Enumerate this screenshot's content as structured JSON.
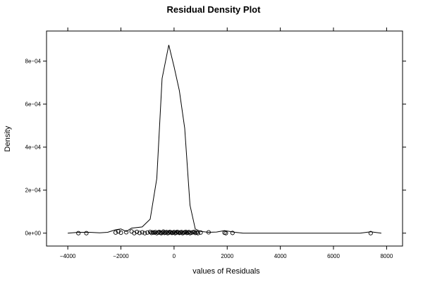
{
  "chart_data": {
    "type": "line",
    "title": "Residual Density Plot",
    "xlabel": "values of Residuals",
    "ylabel": "Density",
    "xlim": [
      -4800,
      8600
    ],
    "ylim": [
      -6e-05,
      0.00094
    ],
    "x_ticks": [
      -4000,
      -2000,
      0,
      2000,
      4000,
      6000,
      8000
    ],
    "x_tick_labels": [
      "−4000",
      "−2000",
      "0",
      "2000",
      "4000",
      "6000",
      "8000"
    ],
    "y_ticks": [
      0,
      0.0002,
      0.0004,
      0.0006,
      0.0008
    ],
    "y_tick_labels": [
      "0e+00",
      "2e−04",
      "4e−04",
      "6e−04",
      "8e−04"
    ],
    "grid": false,
    "legend": "none",
    "series": [
      {
        "type": "line",
        "color": "#000000",
        "x": [
          -4000,
          -3600,
          -3200,
          -2800,
          -2500,
          -2200,
          -2000,
          -1800,
          -1600,
          -1200,
          -900,
          -650,
          -450,
          -200,
          0,
          200,
          400,
          600,
          800,
          1000,
          1300,
          1600,
          1900,
          2300,
          2600,
          3000,
          4000,
          5000,
          6000,
          7000,
          7400,
          7800
        ],
        "y": [
          0,
          3.9e-06,
          3.9e-06,
          1.3e-06,
          3.9e-06,
          1.56e-05,
          1.95e-05,
          7.8e-06,
          2.34e-05,
          2.87e-05,
          6.5e-05,
          0.000254,
          0.000719,
          0.000875,
          0.000774,
          0.000663,
          0.000488,
          0.00013,
          1.95e-05,
          7.8e-06,
          3.9e-06,
          5.2e-06,
          1.17e-05,
          3.9e-06,
          0,
          0,
          0,
          0,
          0,
          0,
          6.5e-06,
          0
        ]
      },
      {
        "type": "scatter",
        "marker": "open-circle",
        "color": "#000000",
        "x": [
          -3600,
          -3300,
          -2200,
          -2100,
          -2000,
          -1800,
          -1600,
          -1500,
          -1400,
          -1300,
          -1200,
          -1100,
          -1000,
          -900,
          -850,
          -800,
          -750,
          -700,
          -650,
          -600,
          -560,
          -520,
          -480,
          -440,
          -400,
          -360,
          -320,
          -280,
          -240,
          -200,
          -160,
          -120,
          -80,
          -40,
          0,
          40,
          80,
          120,
          160,
          200,
          240,
          280,
          320,
          360,
          400,
          440,
          480,
          520,
          560,
          600,
          650,
          700,
          750,
          800,
          850,
          900,
          1000,
          1300,
          1900,
          1950,
          2200,
          7400
        ],
        "y": [
          0,
          0,
          3e-06,
          8e-06,
          2e-06,
          4e-06,
          8e-06,
          0,
          6e-06,
          1e-06,
          4e-06,
          0,
          3e-06,
          6e-06,
          1e-06,
          4e-06,
          2e-06,
          5e-06,
          0,
          3e-06,
          6e-06,
          2e-06,
          0,
          4e-06,
          7e-06,
          1e-06,
          3e-06,
          5e-06,
          0,
          2e-06,
          6e-06,
          4e-06,
          1e-06,
          3e-06,
          5e-06,
          0,
          2e-06,
          6e-06,
          4e-06,
          1e-06,
          3e-06,
          5e-06,
          0,
          2e-06,
          4e-06,
          6e-06,
          1e-06,
          3e-06,
          5e-06,
          0,
          2e-06,
          4e-06,
          6e-06,
          1e-06,
          3e-06,
          0,
          3e-06,
          4e-06,
          2e-06,
          0,
          1e-06,
          0
        ]
      }
    ]
  }
}
